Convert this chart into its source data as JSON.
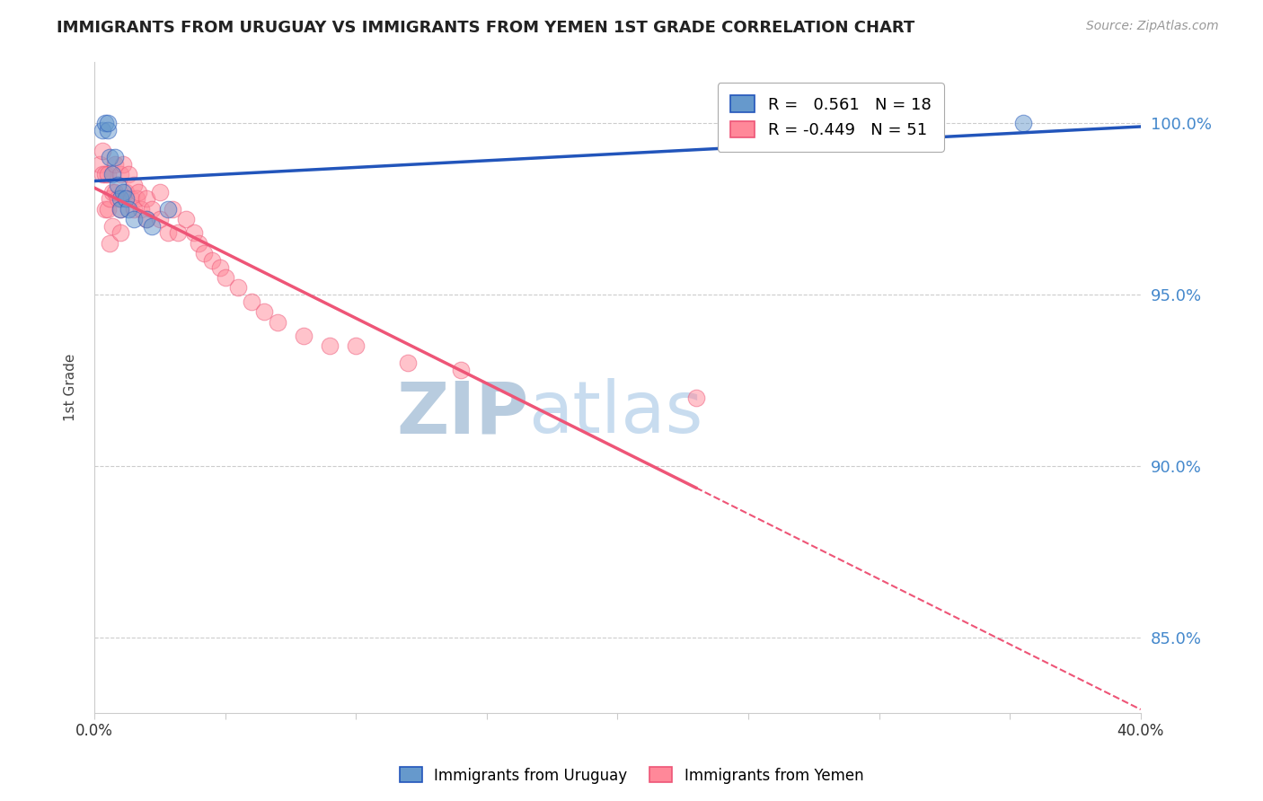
{
  "title": "IMMIGRANTS FROM URUGUAY VS IMMIGRANTS FROM YEMEN 1ST GRADE CORRELATION CHART",
  "source": "Source: ZipAtlas.com",
  "ylabel": "1st Grade",
  "ytick_labels": [
    "100.0%",
    "95.0%",
    "90.0%",
    "85.0%"
  ],
  "ytick_values": [
    1.0,
    0.95,
    0.9,
    0.85
  ],
  "xlim": [
    0.0,
    0.4
  ],
  "ylim": [
    0.828,
    1.018
  ],
  "legend_r_uruguay": "0.561",
  "legend_n_uruguay": "18",
  "legend_r_yemen": "-0.449",
  "legend_n_yemen": "51",
  "color_uruguay": "#6699CC",
  "color_yemen": "#FF8899",
  "color_trendline_uruguay": "#2255BB",
  "color_trendline_yemen": "#EE5577",
  "watermark_zip": "ZIP",
  "watermark_atlas": "atlas",
  "watermark_color": "#C8DCEF",
  "background_color": "#FFFFFF",
  "uruguay_x": [
    0.003,
    0.004,
    0.005,
    0.005,
    0.006,
    0.007,
    0.008,
    0.009,
    0.01,
    0.01,
    0.011,
    0.012,
    0.013,
    0.015,
    0.02,
    0.022,
    0.028,
    0.355
  ],
  "uruguay_y": [
    0.998,
    1.0,
    0.998,
    1.0,
    0.99,
    0.985,
    0.99,
    0.982,
    0.978,
    0.975,
    0.98,
    0.978,
    0.975,
    0.972,
    0.972,
    0.97,
    0.975,
    1.0
  ],
  "yemen_x": [
    0.002,
    0.003,
    0.003,
    0.004,
    0.004,
    0.005,
    0.005,
    0.006,
    0.006,
    0.007,
    0.007,
    0.008,
    0.008,
    0.009,
    0.01,
    0.01,
    0.01,
    0.011,
    0.012,
    0.013,
    0.014,
    0.015,
    0.015,
    0.016,
    0.017,
    0.018,
    0.02,
    0.02,
    0.022,
    0.025,
    0.025,
    0.028,
    0.03,
    0.032,
    0.035,
    0.038,
    0.04,
    0.042,
    0.045,
    0.048,
    0.05,
    0.055,
    0.06,
    0.065,
    0.07,
    0.08,
    0.09,
    0.1,
    0.12,
    0.14,
    0.23
  ],
  "yemen_y": [
    0.988,
    0.985,
    0.992,
    0.985,
    0.975,
    0.985,
    0.975,
    0.978,
    0.965,
    0.98,
    0.97,
    0.988,
    0.98,
    0.978,
    0.985,
    0.975,
    0.968,
    0.988,
    0.98,
    0.985,
    0.978,
    0.982,
    0.975,
    0.978,
    0.98,
    0.975,
    0.978,
    0.972,
    0.975,
    0.972,
    0.98,
    0.968,
    0.975,
    0.968,
    0.972,
    0.968,
    0.965,
    0.962,
    0.96,
    0.958,
    0.955,
    0.952,
    0.948,
    0.945,
    0.942,
    0.938,
    0.935,
    0.935,
    0.93,
    0.928,
    0.92
  ]
}
